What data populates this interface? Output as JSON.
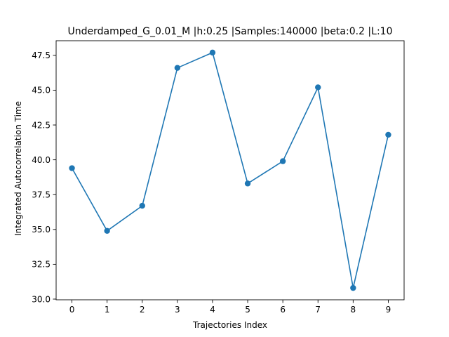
{
  "chart_data": {
    "type": "line",
    "title": "Underdamped_G_0.01_M |h:0.25 |Samples:140000 |beta:0.2 |L:10",
    "xlabel": "Trajectories Index",
    "ylabel": "Integrated Autocorrelation Time",
    "x": [
      0,
      1,
      2,
      3,
      4,
      5,
      6,
      7,
      8,
      9
    ],
    "series": [
      {
        "values": [
          39.4,
          34.9,
          36.7,
          46.6,
          47.7,
          38.3,
          39.9,
          45.2,
          30.8,
          41.8
        ],
        "color": "#1f77b4",
        "marker": "circle"
      }
    ],
    "xlim": [
      -0.45,
      9.45
    ],
    "ylim": [
      29.95,
      48.55
    ],
    "xticks": [
      "0",
      "1",
      "2",
      "3",
      "4",
      "5",
      "6",
      "7",
      "8",
      "9"
    ],
    "yticks": [
      "30.0",
      "32.5",
      "35.0",
      "37.5",
      "40.0",
      "42.5",
      "45.0",
      "47.5"
    ],
    "grid": false,
    "legend": "none"
  }
}
